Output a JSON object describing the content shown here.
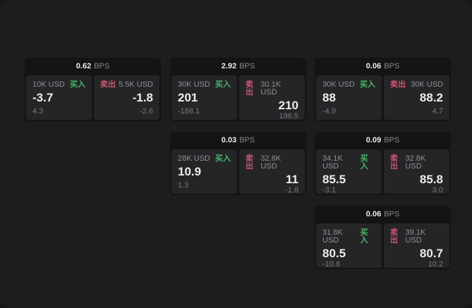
{
  "labels": {
    "bps": "BPS",
    "buy": "买入",
    "sell": "卖出"
  },
  "colors": {
    "page_background": "#1d1d1f",
    "outer_background": "#151515",
    "card_background": "#141416",
    "panel_background": "#252528",
    "buy_green": "#46b868",
    "sell_red": "#c9566f",
    "primary_text": "#ececec",
    "muted_text": "#929296"
  },
  "cards": [
    {
      "bps": "0.62",
      "buy": {
        "amount": "10K USD",
        "value": "-3.7",
        "sub": "4.3"
      },
      "sell": {
        "amount": "5.5K USD",
        "value": "-1.8",
        "sub": "-2.6"
      }
    },
    {
      "bps": "2.92",
      "buy": {
        "amount": "30K USD",
        "value": "201",
        "sub": "-188.1"
      },
      "sell": {
        "amount": "30.1K USD",
        "value": "210",
        "sub": "196.5"
      }
    },
    {
      "bps": "0.06",
      "buy": {
        "amount": "30K USD",
        "value": "88",
        "sub": "-4.9"
      },
      "sell": {
        "amount": "30K USD",
        "value": "88.2",
        "sub": "4.7"
      }
    },
    {
      "bps": "0.03",
      "buy": {
        "amount": "28K USD",
        "value": "10.9",
        "sub": "1.3"
      },
      "sell": {
        "amount": "32.6K USD",
        "value": "11",
        "sub": "-1.8"
      }
    },
    {
      "bps": "0.09",
      "buy": {
        "amount": "34.1K USD",
        "value": "85.5",
        "sub": "-3.1"
      },
      "sell": {
        "amount": "32.8K USD",
        "value": "85.8",
        "sub": "3.0"
      }
    },
    {
      "bps": "0.06",
      "buy": {
        "amount": "31.8K USD",
        "value": "80.5",
        "sub": "-10.8"
      },
      "sell": {
        "amount": "39.1K USD",
        "value": "80.7",
        "sub": "10.2"
      }
    }
  ]
}
